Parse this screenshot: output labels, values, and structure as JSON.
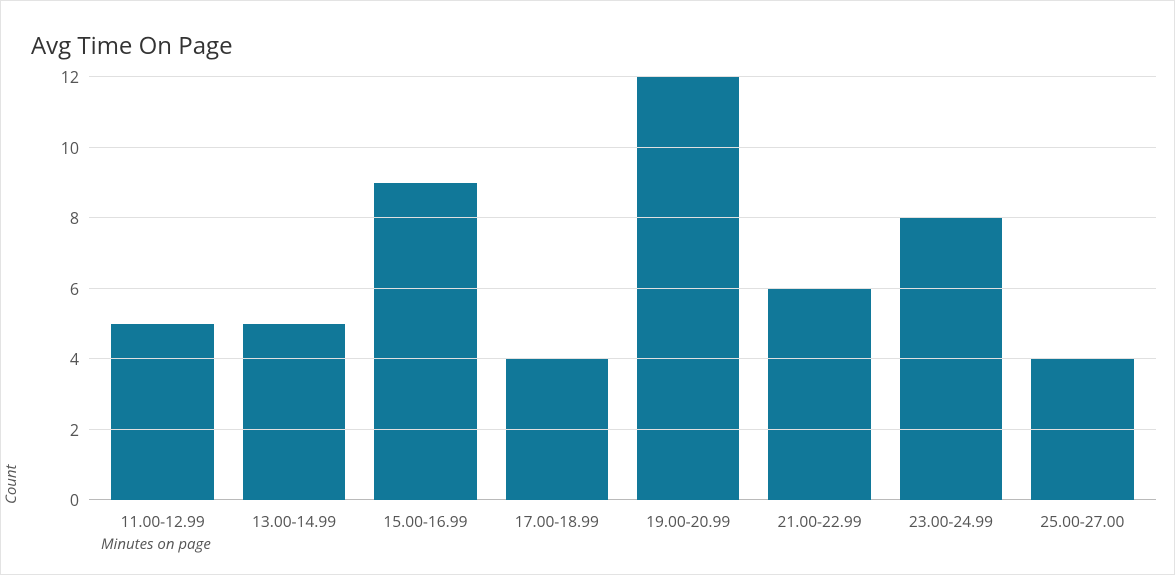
{
  "chart": {
    "type": "bar",
    "title": "Avg Time On Page",
    "title_fontsize": 24,
    "title_color": "#333333",
    "ylabel": "Count",
    "xlabel": "Minutes on page",
    "axis_label_fontsize": 15,
    "axis_label_fontstyle": "italic",
    "axis_label_color": "#555555",
    "tick_label_fontsize": 16,
    "tick_label_color": "#555555",
    "background_color": "#ffffff",
    "card_border_color": "#e3e3e3",
    "grid_color": "#e0e0e0",
    "baseline_color": "#bababa",
    "ylim": [
      0,
      12
    ],
    "ytick_step": 2,
    "yticks": [
      0,
      2,
      4,
      6,
      8,
      10,
      12
    ],
    "categories": [
      "11.00-12.99",
      "13.00-14.99",
      "15.00-16.99",
      "17.00-18.99",
      "19.00-20.99",
      "21.00-22.99",
      "23.00-24.99",
      "25.00-27.00"
    ],
    "values": [
      5,
      5,
      9,
      4,
      12,
      6,
      8,
      4
    ],
    "bar_color": "#117899",
    "bar_width": 0.78,
    "aspect_width": 1175,
    "aspect_height": 575
  }
}
